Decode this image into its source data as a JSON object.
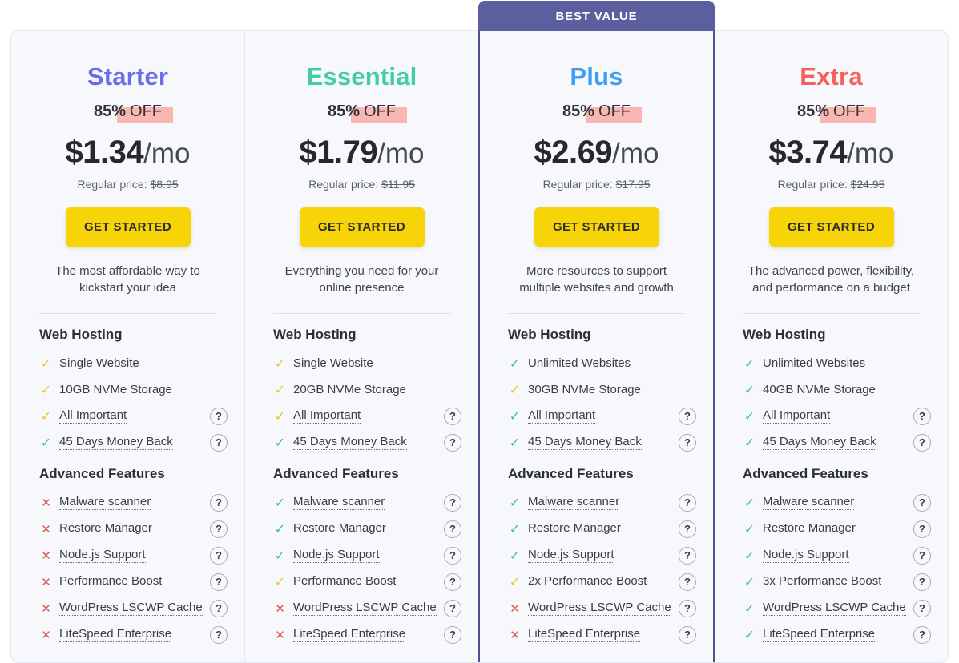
{
  "banner": {
    "label": "BEST VALUE",
    "bg": "#5b5e9f"
  },
  "icons": {
    "check": "✓",
    "cross": "✕",
    "help": "?"
  },
  "colors": {
    "card_bg": "#f7f8fc",
    "card_border": "#e5e7f1",
    "column_divider": "#e3e5f0",
    "best_border": "#4f5292",
    "button_bg": "#f7d408",
    "button_text": "#2b2d33",
    "check_yellow": "#f0c420",
    "check_green": "#3abf9d",
    "cross_red": "#e25752",
    "discount_highlight": "#f9b6b2",
    "heading_text": "#2c2f36",
    "body_text": "#3f434b"
  },
  "plans": [
    {
      "name": "Starter",
      "accent": "#6b6ce8",
      "best_value": false,
      "discount_strong": "85%",
      "discount_rest": "OFF",
      "price": "$1.34",
      "period": "/mo",
      "regular_label": "Regular price:",
      "regular_price": "$8.95",
      "cta_label": "GET STARTED",
      "description": "The most affordable way to kickstart your idea",
      "sections": [
        {
          "heading": "Web Hosting",
          "items": [
            {
              "label": "Single Website",
              "icon": "check-yellow",
              "underline": false,
              "help": false
            },
            {
              "label": "10GB NVMe Storage",
              "icon": "check-yellow",
              "underline": false,
              "help": false
            },
            {
              "label": "All Important",
              "icon": "check-yellow",
              "underline": true,
              "help": true
            },
            {
              "label": "45 Days Money Back",
              "icon": "check-green",
              "underline": true,
              "help": true
            }
          ]
        },
        {
          "heading": "Advanced Features",
          "items": [
            {
              "label": "Malware scanner",
              "icon": "cross-red",
              "underline": true,
              "help": true
            },
            {
              "label": "Restore Manager",
              "icon": "cross-red",
              "underline": true,
              "help": true
            },
            {
              "label": "Node.js Support",
              "icon": "cross-red",
              "underline": true,
              "help": true
            },
            {
              "label": "Performance Boost",
              "icon": "cross-red",
              "underline": true,
              "help": true
            },
            {
              "label": "WordPress LSCWP Cache",
              "icon": "cross-red",
              "underline": true,
              "help": true
            },
            {
              "label": "LiteSpeed Enterprise",
              "icon": "cross-red",
              "underline": true,
              "help": true
            }
          ]
        }
      ]
    },
    {
      "name": "Essential",
      "accent": "#43cda2",
      "best_value": false,
      "discount_strong": "85%",
      "discount_rest": "OFF",
      "price": "$1.79",
      "period": "/mo",
      "regular_label": "Regular price:",
      "regular_price": "$11.95",
      "cta_label": "GET STARTED",
      "description": "Everything you need for your online presence",
      "sections": [
        {
          "heading": "Web Hosting",
          "items": [
            {
              "label": "Single Website",
              "icon": "check-yellow",
              "underline": false,
              "help": false
            },
            {
              "label": "20GB NVMe Storage",
              "icon": "check-yellow",
              "underline": false,
              "help": false
            },
            {
              "label": "All Important",
              "icon": "check-yellow",
              "underline": true,
              "help": true
            },
            {
              "label": "45 Days Money Back",
              "icon": "check-green",
              "underline": true,
              "help": true
            }
          ]
        },
        {
          "heading": "Advanced Features",
          "items": [
            {
              "label": "Malware scanner",
              "icon": "check-green",
              "underline": true,
              "help": true
            },
            {
              "label": "Restore Manager",
              "icon": "check-green",
              "underline": true,
              "help": true
            },
            {
              "label": "Node.js Support",
              "icon": "check-green",
              "underline": true,
              "help": true
            },
            {
              "label": "Performance Boost",
              "icon": "check-yellow",
              "underline": true,
              "help": true
            },
            {
              "label": "WordPress LSCWP Cache",
              "icon": "cross-red",
              "underline": true,
              "help": true
            },
            {
              "label": "LiteSpeed Enterprise",
              "icon": "cross-red",
              "underline": true,
              "help": true
            }
          ]
        }
      ]
    },
    {
      "name": "Plus",
      "accent": "#3d9ef0",
      "best_value": true,
      "discount_strong": "85%",
      "discount_rest": "OFF",
      "price": "$2.69",
      "period": "/mo",
      "regular_label": "Regular price:",
      "regular_price": "$17.95",
      "cta_label": "GET STARTED",
      "description": "More resources to support multiple websites and growth",
      "sections": [
        {
          "heading": "Web Hosting",
          "items": [
            {
              "label": "Unlimited Websites",
              "icon": "check-green",
              "underline": false,
              "help": false
            },
            {
              "label": "30GB NVMe Storage",
              "icon": "check-yellow",
              "underline": false,
              "help": false
            },
            {
              "label": "All Important",
              "icon": "check-green",
              "underline": true,
              "help": true
            },
            {
              "label": "45 Days Money Back",
              "icon": "check-green",
              "underline": true,
              "help": true
            }
          ]
        },
        {
          "heading": "Advanced Features",
          "items": [
            {
              "label": "Malware scanner",
              "icon": "check-green",
              "underline": true,
              "help": true
            },
            {
              "label": "Restore Manager",
              "icon": "check-green",
              "underline": true,
              "help": true
            },
            {
              "label": "Node.js Support",
              "icon": "check-green",
              "underline": true,
              "help": true
            },
            {
              "label": "2x Performance Boost",
              "icon": "check-yellow",
              "underline": true,
              "help": true
            },
            {
              "label": "WordPress LSCWP Cache",
              "icon": "cross-red",
              "underline": true,
              "help": true
            },
            {
              "label": "LiteSpeed Enterprise",
              "icon": "cross-red",
              "underline": true,
              "help": true
            }
          ]
        }
      ]
    },
    {
      "name": "Extra",
      "accent": "#f4615c",
      "best_value": false,
      "discount_strong": "85%",
      "discount_rest": "OFF",
      "price": "$3.74",
      "period": "/mo",
      "regular_label": "Regular price:",
      "regular_price": "$24.95",
      "cta_label": "GET STARTED",
      "description": "The advanced power, flexibility, and performance on a budget",
      "sections": [
        {
          "heading": "Web Hosting",
          "items": [
            {
              "label": "Unlimited Websites",
              "icon": "check-green",
              "underline": false,
              "help": false
            },
            {
              "label": "40GB NVMe Storage",
              "icon": "check-green",
              "underline": false,
              "help": false
            },
            {
              "label": "All Important",
              "icon": "check-green",
              "underline": true,
              "help": true
            },
            {
              "label": "45 Days Money Back",
              "icon": "check-green",
              "underline": true,
              "help": true
            }
          ]
        },
        {
          "heading": "Advanced Features",
          "items": [
            {
              "label": "Malware scanner",
              "icon": "check-green",
              "underline": true,
              "help": true
            },
            {
              "label": "Restore Manager",
              "icon": "check-green",
              "underline": true,
              "help": true
            },
            {
              "label": "Node.js Support",
              "icon": "check-green",
              "underline": true,
              "help": true
            },
            {
              "label": "3x Performance Boost",
              "icon": "check-green",
              "underline": true,
              "help": true
            },
            {
              "label": "WordPress LSCWP Cache",
              "icon": "check-green",
              "underline": true,
              "help": true
            },
            {
              "label": "LiteSpeed Enterprise",
              "icon": "check-green",
              "underline": true,
              "help": true
            }
          ]
        }
      ]
    }
  ]
}
